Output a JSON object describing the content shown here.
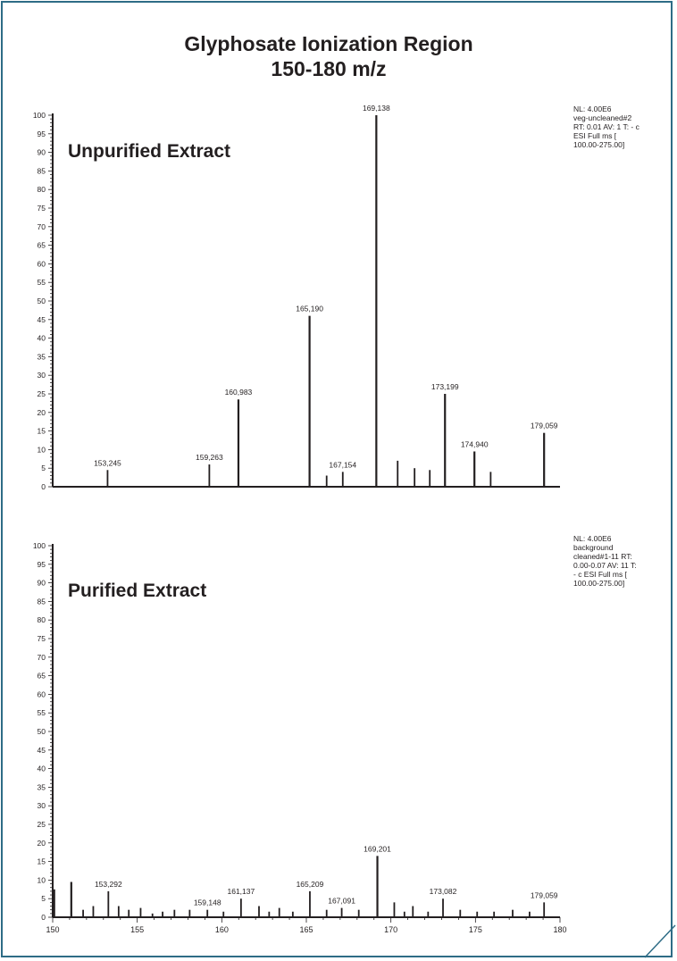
{
  "title": "Glyphosate Ionization Region",
  "subtitle": "150-180 m/z",
  "colors": {
    "frame": "#2e6c86",
    "ink": "#231f20"
  },
  "chart_data": [
    {
      "type": "bar",
      "panel_label": "Unpurified Extract",
      "metadata": "NL: 4.00E6\nveg-uncleaned#2\nRT: 0.01  AV: 1 T: - c\nESI Full ms [\n100.00-275.00]",
      "xlim": [
        150,
        180
      ],
      "ylim": [
        0,
        100
      ],
      "y_ticks": [
        0,
        5,
        10,
        15,
        20,
        25,
        30,
        35,
        40,
        45,
        50,
        55,
        60,
        65,
        70,
        75,
        80,
        85,
        90,
        95,
        100
      ],
      "x_ticks": [],
      "peaks": [
        {
          "x": 153.245,
          "y": 4.5,
          "label": "153,245"
        },
        {
          "x": 159.263,
          "y": 6,
          "label": "159,263"
        },
        {
          "x": 160.983,
          "y": 23.5,
          "label": "160,983"
        },
        {
          "x": 165.19,
          "y": 46,
          "label": "165,190"
        },
        {
          "x": 166.2,
          "y": 3,
          "label": ""
        },
        {
          "x": 167.154,
          "y": 4,
          "label": "167,154"
        },
        {
          "x": 169.138,
          "y": 100,
          "label": "169,138"
        },
        {
          "x": 170.4,
          "y": 7,
          "label": ""
        },
        {
          "x": 171.4,
          "y": 5,
          "label": ""
        },
        {
          "x": 172.3,
          "y": 4.5,
          "label": ""
        },
        {
          "x": 173.199,
          "y": 25,
          "label": "173,199"
        },
        {
          "x": 174.94,
          "y": 9.5,
          "label": "174,940"
        },
        {
          "x": 175.9,
          "y": 4,
          "label": ""
        },
        {
          "x": 179.059,
          "y": 14.5,
          "label": "179,059"
        }
      ]
    },
    {
      "type": "bar",
      "panel_label": "Purified Extract",
      "metadata": "NL: 4.00E6\nbackground\ncleaned#1-11  RT:\n0.00-0.07  AV: 11 T:\n- c ESI Full ms [\n100.00-275.00]",
      "xlim": [
        150,
        180
      ],
      "ylim": [
        0,
        100
      ],
      "y_ticks": [
        0,
        5,
        10,
        15,
        20,
        25,
        30,
        35,
        40,
        45,
        50,
        55,
        60,
        65,
        70,
        75,
        80,
        85,
        90,
        95,
        100
      ],
      "x_ticks": [
        150,
        155,
        160,
        165,
        170,
        175,
        180
      ],
      "peaks": [
        {
          "x": 150.1,
          "y": 7.5,
          "label": ""
        },
        {
          "x": 151.1,
          "y": 9.5,
          "label": ""
        },
        {
          "x": 151.8,
          "y": 2,
          "label": ""
        },
        {
          "x": 152.4,
          "y": 3,
          "label": ""
        },
        {
          "x": 153.292,
          "y": 7,
          "label": "153,292"
        },
        {
          "x": 153.9,
          "y": 3,
          "label": ""
        },
        {
          "x": 154.5,
          "y": 2,
          "label": ""
        },
        {
          "x": 155.2,
          "y": 2.5,
          "label": ""
        },
        {
          "x": 155.9,
          "y": 1,
          "label": ""
        },
        {
          "x": 156.5,
          "y": 1.5,
          "label": ""
        },
        {
          "x": 157.2,
          "y": 2,
          "label": ""
        },
        {
          "x": 158.1,
          "y": 2,
          "label": ""
        },
        {
          "x": 159.148,
          "y": 2,
          "label": "159,148"
        },
        {
          "x": 160.1,
          "y": 1.5,
          "label": ""
        },
        {
          "x": 161.137,
          "y": 5,
          "label": "161,137"
        },
        {
          "x": 162.2,
          "y": 3,
          "label": ""
        },
        {
          "x": 162.8,
          "y": 1.5,
          "label": ""
        },
        {
          "x": 163.4,
          "y": 2.5,
          "label": ""
        },
        {
          "x": 164.2,
          "y": 1.5,
          "label": ""
        },
        {
          "x": 165.209,
          "y": 7,
          "label": "165,209"
        },
        {
          "x": 166.2,
          "y": 2,
          "label": ""
        },
        {
          "x": 167.091,
          "y": 2.5,
          "label": "167,091"
        },
        {
          "x": 168.1,
          "y": 2,
          "label": ""
        },
        {
          "x": 169.201,
          "y": 16.5,
          "label": "169,201"
        },
        {
          "x": 170.2,
          "y": 4,
          "label": ""
        },
        {
          "x": 170.8,
          "y": 1.5,
          "label": ""
        },
        {
          "x": 171.3,
          "y": 3,
          "label": ""
        },
        {
          "x": 172.2,
          "y": 1.5,
          "label": ""
        },
        {
          "x": 173.082,
          "y": 5,
          "label": "173,082"
        },
        {
          "x": 174.1,
          "y": 2,
          "label": ""
        },
        {
          "x": 175.1,
          "y": 1.5,
          "label": ""
        },
        {
          "x": 176.1,
          "y": 1.5,
          "label": ""
        },
        {
          "x": 177.2,
          "y": 2,
          "label": ""
        },
        {
          "x": 178.2,
          "y": 1.5,
          "label": ""
        },
        {
          "x": 179.059,
          "y": 4,
          "label": "179,059"
        }
      ]
    }
  ]
}
